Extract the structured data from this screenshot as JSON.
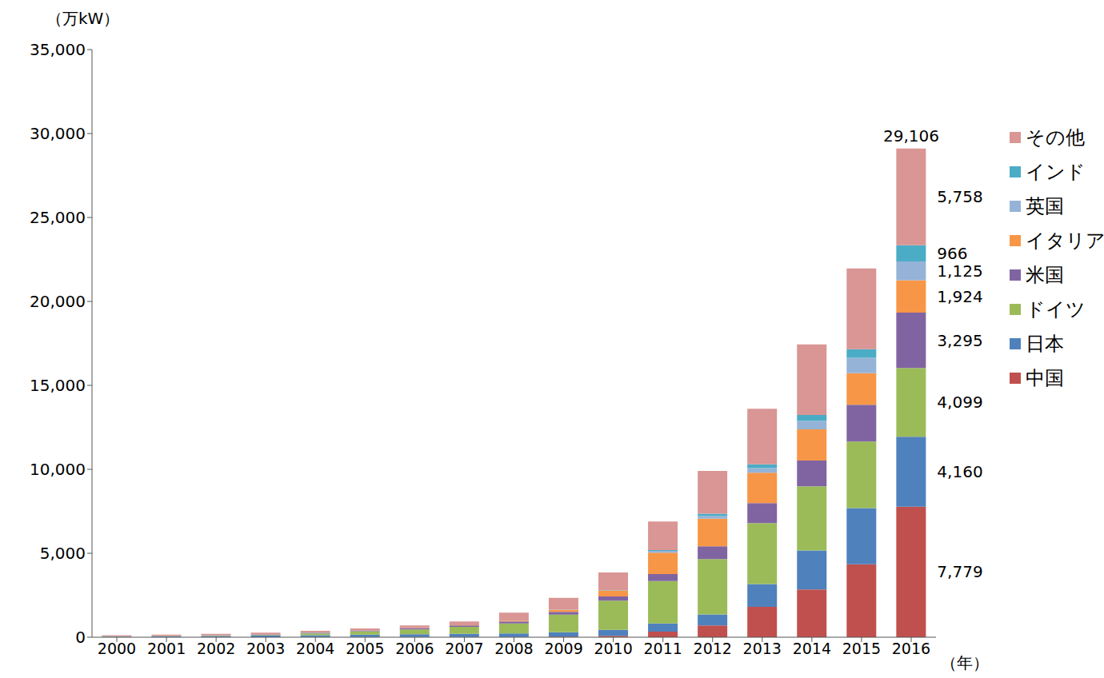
{
  "chart_data": {
    "type": "bar",
    "stacked": true,
    "y_label": "（万kW）",
    "x_label": "（年）",
    "categories": [
      "2000",
      "2001",
      "2002",
      "2003",
      "2004",
      "2005",
      "2006",
      "2007",
      "2008",
      "2009",
      "2010",
      "2011",
      "2012",
      "2013",
      "2014",
      "2015",
      "2016"
    ],
    "ylim": [
      0,
      35000
    ],
    "yticks": [
      0,
      {
        "value": 5000,
        "label": "5,000"
      },
      {
        "value": 10000,
        "label": "10,000"
      },
      {
        "value": 15000,
        "label": "15,000"
      },
      {
        "value": 20000,
        "label": "20,000"
      },
      {
        "value": 25000,
        "label": "25,000"
      },
      {
        "value": 30000,
        "label": "30,000"
      },
      {
        "value": 35000,
        "label": "35,000"
      }
    ],
    "grid": false,
    "legend": "right",
    "series": [
      {
        "name": "中国",
        "color": "#c0504d",
        "values": [
          2,
          3,
          4,
          5,
          6,
          7,
          8,
          10,
          14,
          30,
          80,
          330,
          700,
          1810,
          2840,
          4350,
          7779
        ],
        "value_labels": [
          null,
          null,
          null,
          null,
          null,
          null,
          null,
          null,
          null,
          null,
          null,
          null,
          null,
          null,
          null,
          null,
          "7,779"
        ]
      },
      {
        "name": "日本",
        "color": "#4f81bd",
        "values": [
          33,
          45,
          64,
          86,
          113,
          142,
          171,
          192,
          214,
          263,
          362,
          491,
          656,
          1360,
          2330,
          3340,
          4160
        ],
        "value_labels": [
          null,
          null,
          null,
          null,
          null,
          null,
          null,
          null,
          null,
          null,
          null,
          null,
          null,
          null,
          null,
          null,
          "4,160"
        ]
      },
      {
        "name": "ドイツ",
        "color": "#9bbb59",
        "values": [
          11,
          19,
          30,
          44,
          107,
          206,
          290,
          417,
          598,
          1057,
          1737,
          2519,
          3296,
          3623,
          3823,
          3970,
          4099
        ],
        "value_labels": [
          null,
          null,
          null,
          null,
          null,
          null,
          null,
          null,
          null,
          null,
          null,
          null,
          null,
          null,
          null,
          null,
          "4,099"
        ]
      },
      {
        "name": "米国",
        "color": "#8064a2",
        "values": [
          14,
          17,
          21,
          28,
          37,
          48,
          62,
          83,
          117,
          164,
          253,
          420,
          770,
          1200,
          1530,
          2180,
          3295
        ],
        "value_labels": [
          null,
          null,
          null,
          null,
          null,
          null,
          null,
          null,
          null,
          null,
          null,
          null,
          null,
          null,
          null,
          null,
          "3,295"
        ]
      },
      {
        "name": "イタリア",
        "color": "#f79646",
        "values": [
          2,
          2,
          2,
          3,
          3,
          4,
          5,
          12,
          45,
          118,
          353,
          1280,
          1640,
          1800,
          1860,
          1890,
          1924
        ],
        "value_labels": [
          null,
          null,
          null,
          null,
          null,
          null,
          null,
          null,
          null,
          null,
          null,
          null,
          null,
          null,
          null,
          null,
          "1,924"
        ]
      },
      {
        "name": "英国",
        "color": "#95b3d7",
        "values": [
          1,
          1,
          1,
          1,
          1,
          1,
          1,
          2,
          2,
          3,
          8,
          100,
          170,
          280,
          510,
          910,
          1125
        ],
        "value_labels": [
          null,
          null,
          null,
          null,
          null,
          null,
          null,
          null,
          null,
          null,
          null,
          null,
          null,
          null,
          null,
          null,
          "1,125"
        ]
      },
      {
        "name": "インド",
        "color": "#4bacc6",
        "values": [
          0,
          0,
          0,
          1,
          1,
          1,
          1,
          2,
          3,
          10,
          18,
          56,
          120,
          230,
          350,
          520,
          966
        ],
        "value_labels": [
          null,
          null,
          null,
          null,
          null,
          null,
          null,
          null,
          null,
          null,
          null,
          null,
          null,
          null,
          null,
          null,
          "966"
        ]
      },
      {
        "name": "その他",
        "color": "#d99694",
        "values": [
          60,
          70,
          85,
          100,
          110,
          120,
          160,
          220,
          470,
          700,
          1050,
          1700,
          2550,
          3300,
          4200,
          4800,
          5758
        ],
        "value_labels": [
          null,
          null,
          null,
          null,
          null,
          null,
          null,
          null,
          null,
          null,
          null,
          null,
          null,
          null,
          null,
          null,
          "5,758"
        ]
      }
    ],
    "annotations": [
      {
        "x": "2016",
        "y": 29106,
        "text": "29,106"
      }
    ]
  }
}
